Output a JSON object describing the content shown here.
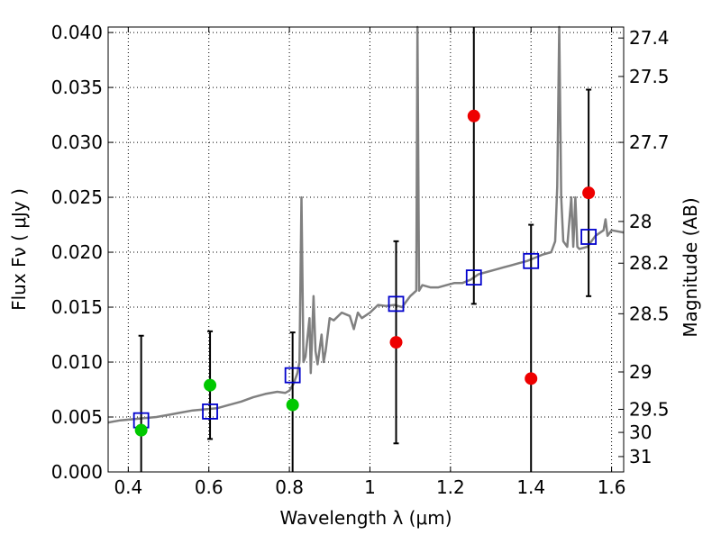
{
  "chart_data": {
    "type": "scatter",
    "title": "",
    "xlabel": "Wavelength  λ (μm)",
    "ylabel": "Flux  Fν  ( μJy )",
    "ylabel_right": "Magnitude (AB)",
    "xlim": [
      0.35,
      1.63
    ],
    "ylim": [
      0.0,
      0.0405
    ],
    "grid": true,
    "x_ticks": [
      {
        "value": 0.4,
        "label": "0.4"
      },
      {
        "value": 0.6,
        "label": "0.6"
      },
      {
        "value": 0.8,
        "label": "0.8"
      },
      {
        "value": 1.0,
        "label": "1"
      },
      {
        "value": 1.2,
        "label": "1.2"
      },
      {
        "value": 1.4,
        "label": "1.4"
      },
      {
        "value": 1.6,
        "label": "1.6"
      }
    ],
    "y_ticks": [
      {
        "value": 0.0,
        "label": "0.000"
      },
      {
        "value": 0.005,
        "label": "0.005"
      },
      {
        "value": 0.01,
        "label": "0.010"
      },
      {
        "value": 0.015,
        "label": "0.015"
      },
      {
        "value": 0.02,
        "label": "0.020"
      },
      {
        "value": 0.025,
        "label": "0.025"
      },
      {
        "value": 0.03,
        "label": "0.030"
      },
      {
        "value": 0.035,
        "label": "0.035"
      },
      {
        "value": 0.04,
        "label": "0.040"
      }
    ],
    "right_ticks": [
      {
        "mag": "27.4",
        "flux": 0.0395
      },
      {
        "mag": "27.5",
        "flux": 0.036
      },
      {
        "mag": "27.7",
        "flux": 0.03
      },
      {
        "mag": "28",
        "flux": 0.0228
      },
      {
        "mag": "28.2",
        "flux": 0.019
      },
      {
        "mag": "28.5",
        "flux": 0.0144
      },
      {
        "mag": "29",
        "flux": 0.0091
      },
      {
        "mag": "29.5",
        "flux": 0.0057
      },
      {
        "mag": "30",
        "flux": 0.0036
      },
      {
        "mag": "31",
        "flux": 0.0014
      }
    ],
    "series": [
      {
        "kind": "line",
        "color": "#808080",
        "points": [
          [
            0.35,
            0.0045
          ],
          [
            0.38,
            0.0047
          ],
          [
            0.41,
            0.0048
          ],
          [
            0.44,
            0.0049
          ],
          [
            0.47,
            0.005
          ],
          [
            0.5,
            0.0052
          ],
          [
            0.53,
            0.0054
          ],
          [
            0.56,
            0.0056
          ],
          [
            0.59,
            0.0057
          ],
          [
            0.62,
            0.0058
          ],
          [
            0.65,
            0.0061
          ],
          [
            0.68,
            0.0064
          ],
          [
            0.71,
            0.0068
          ],
          [
            0.74,
            0.0071
          ],
          [
            0.77,
            0.0073
          ],
          [
            0.79,
            0.0072
          ],
          [
            0.8,
            0.0074
          ],
          [
            0.81,
            0.008
          ],
          [
            0.82,
            0.009
          ],
          [
            0.825,
            0.01
          ],
          [
            0.83,
            0.025
          ],
          [
            0.835,
            0.01
          ],
          [
            0.84,
            0.0105
          ],
          [
            0.85,
            0.014
          ],
          [
            0.853,
            0.009
          ],
          [
            0.86,
            0.016
          ],
          [
            0.865,
            0.011
          ],
          [
            0.87,
            0.0098
          ],
          [
            0.88,
            0.0125
          ],
          [
            0.885,
            0.01
          ],
          [
            0.89,
            0.011
          ],
          [
            0.9,
            0.014
          ],
          [
            0.91,
            0.0138
          ],
          [
            0.93,
            0.0145
          ],
          [
            0.95,
            0.0142
          ],
          [
            0.96,
            0.013
          ],
          [
            0.97,
            0.0145
          ],
          [
            0.98,
            0.014
          ],
          [
            1.0,
            0.0145
          ],
          [
            1.02,
            0.0152
          ],
          [
            1.04,
            0.0151
          ],
          [
            1.06,
            0.0152
          ],
          [
            1.08,
            0.015
          ],
          [
            1.1,
            0.016
          ],
          [
            1.115,
            0.0165
          ],
          [
            1.118,
            0.042
          ],
          [
            1.122,
            0.0165
          ],
          [
            1.13,
            0.017
          ],
          [
            1.15,
            0.0168
          ],
          [
            1.17,
            0.0168
          ],
          [
            1.19,
            0.017
          ],
          [
            1.21,
            0.0172
          ],
          [
            1.23,
            0.0172
          ],
          [
            1.25,
            0.0175
          ],
          [
            1.27,
            0.018
          ],
          [
            1.29,
            0.0182
          ],
          [
            1.31,
            0.0184
          ],
          [
            1.33,
            0.0186
          ],
          [
            1.35,
            0.0188
          ],
          [
            1.37,
            0.019
          ],
          [
            1.39,
            0.0192
          ],
          [
            1.41,
            0.0195
          ],
          [
            1.43,
            0.0198
          ],
          [
            1.45,
            0.02
          ],
          [
            1.46,
            0.021
          ],
          [
            1.465,
            0.026
          ],
          [
            1.47,
            0.041
          ],
          [
            1.475,
            0.025
          ],
          [
            1.48,
            0.021
          ],
          [
            1.49,
            0.0205
          ],
          [
            1.5,
            0.025
          ],
          [
            1.505,
            0.0205
          ],
          [
            1.51,
            0.025
          ],
          [
            1.515,
            0.0205
          ],
          [
            1.52,
            0.0203
          ],
          [
            1.54,
            0.0205
          ],
          [
            1.56,
            0.0215
          ],
          [
            1.58,
            0.022
          ],
          [
            1.585,
            0.023
          ],
          [
            1.59,
            0.0215
          ],
          [
            1.6,
            0.022
          ],
          [
            1.63,
            0.0218
          ]
        ]
      },
      {
        "kind": "open-square",
        "color": "#0000cc",
        "points": [
          [
            0.432,
            0.0047
          ],
          [
            0.603,
            0.0055
          ],
          [
            0.808,
            0.0088
          ],
          [
            1.065,
            0.0153
          ],
          [
            1.258,
            0.0177
          ],
          [
            1.4,
            0.0192
          ],
          [
            1.543,
            0.0214
          ]
        ]
      },
      {
        "kind": "error-bars",
        "color": "#000000",
        "points": [
          {
            "x": 0.432,
            "low": 0.0,
            "high": 0.0124
          },
          {
            "x": 0.603,
            "low": 0.003,
            "high": 0.0128
          },
          {
            "x": 0.808,
            "low": 0.0,
            "high": 0.0127
          },
          {
            "x": 1.065,
            "low": 0.0026,
            "high": 0.021
          },
          {
            "x": 1.258,
            "low": 0.0153,
            "high": 0.0405
          },
          {
            "x": 1.4,
            "low": 0.0,
            "high": 0.0225
          },
          {
            "x": 1.543,
            "low": 0.016,
            "high": 0.0348
          }
        ]
      },
      {
        "kind": "filled-circle",
        "color": "#00c800",
        "points": [
          [
            0.432,
            0.0038
          ],
          [
            0.603,
            0.0079
          ],
          [
            0.808,
            0.0061
          ]
        ]
      },
      {
        "kind": "filled-circle",
        "color": "#ee0000",
        "points": [
          [
            1.065,
            0.0118
          ],
          [
            1.258,
            0.0324
          ],
          [
            1.4,
            0.0085
          ],
          [
            1.543,
            0.0254
          ]
        ]
      }
    ]
  }
}
